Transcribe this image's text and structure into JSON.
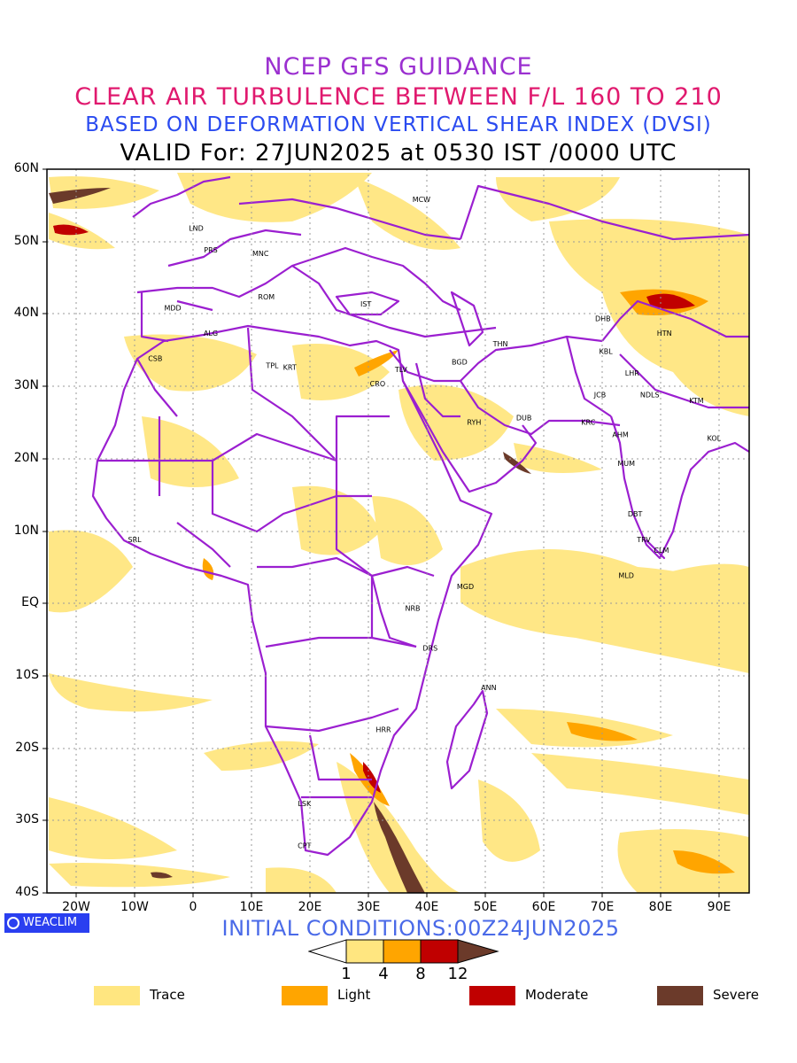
{
  "titles": {
    "line1": "NCEP GFS GUIDANCE",
    "line2": "CLEAR AIR TURBULENCE BETWEEN F/L 160 TO 210",
    "line3": "BASED ON DEFORMATION VERTICAL SHEAR INDEX (DVSI)",
    "line4": "VALID For: 27JUN2025 at 0530 IST /0000 UTC"
  },
  "axes": {
    "lat_labels": [
      "60N",
      "50N",
      "40N",
      "30N",
      "20N",
      "10N",
      "EQ",
      "10S",
      "20S",
      "30S",
      "40S"
    ],
    "lon_labels": [
      "20W",
      "10W",
      "0",
      "10E",
      "20E",
      "30E",
      "40E",
      "50E",
      "60E",
      "70E",
      "80E",
      "90E"
    ]
  },
  "logo": {
    "text": "WEACLIM",
    "icon": "globe-ring-icon"
  },
  "initial_conditions": "INITIAL CONDITIONS:00Z24JUN2025",
  "colorbar": {
    "ticks": [
      "1",
      "4",
      "8",
      "12"
    ],
    "colors": [
      "#ffffff",
      "#ffe680",
      "#ffa500",
      "#c00000",
      "#6b3a2a"
    ]
  },
  "legend": [
    {
      "label": "Trace",
      "color": "#ffe680"
    },
    {
      "label": "Light",
      "color": "#ffa500"
    },
    {
      "label": "Moderate",
      "color": "#c00000"
    },
    {
      "label": "Severe",
      "color": "#6b3a2a"
    }
  ],
  "cities": [
    {
      "code": "MCW",
      "lon": 39,
      "lat": 55.5
    },
    {
      "code": "LND",
      "lon": 0.5,
      "lat": 51.5
    },
    {
      "code": "PRS",
      "lon": 3,
      "lat": 48.5
    },
    {
      "code": "MNC",
      "lon": 11.5,
      "lat": 48
    },
    {
      "code": "ROM",
      "lon": 12.5,
      "lat": 42
    },
    {
      "code": "MDD",
      "lon": -3.5,
      "lat": 40.5
    },
    {
      "code": "IST",
      "lon": 29.5,
      "lat": 41
    },
    {
      "code": "ALG",
      "lon": 3,
      "lat": 37
    },
    {
      "code": "CSB",
      "lon": -6.5,
      "lat": 33.5
    },
    {
      "code": "TPL",
      "lon": 13.5,
      "lat": 32.5
    },
    {
      "code": "KRT",
      "lon": 16.5,
      "lat": 32.3
    },
    {
      "code": "TLV",
      "lon": 35.5,
      "lat": 32
    },
    {
      "code": "CRO",
      "lon": 31.5,
      "lat": 30
    },
    {
      "code": "BGD",
      "lon": 45.5,
      "lat": 33
    },
    {
      "code": "THN",
      "lon": 52.5,
      "lat": 35.5
    },
    {
      "code": "DHB",
      "lon": 70,
      "lat": 39
    },
    {
      "code": "HTN",
      "lon": 80.5,
      "lat": 37
    },
    {
      "code": "KBL",
      "lon": 70.5,
      "lat": 34.5
    },
    {
      "code": "LHR",
      "lon": 75,
      "lat": 31.5
    },
    {
      "code": "RYH",
      "lon": 48,
      "lat": 24.7
    },
    {
      "code": "DUB",
      "lon": 56.5,
      "lat": 25.3
    },
    {
      "code": "JCB",
      "lon": 69.5,
      "lat": 28.5
    },
    {
      "code": "NDLS",
      "lon": 78,
      "lat": 28.5
    },
    {
      "code": "KTM",
      "lon": 86,
      "lat": 27.7
    },
    {
      "code": "KRC",
      "lon": 67.5,
      "lat": 24.7
    },
    {
      "code": "AHM",
      "lon": 73,
      "lat": 23
    },
    {
      "code": "KOL",
      "lon": 89,
      "lat": 22.5
    },
    {
      "code": "MUM",
      "lon": 74,
      "lat": 19
    },
    {
      "code": "SRL",
      "lon": -10,
      "lat": 8.5
    },
    {
      "code": "DBT",
      "lon": 75.5,
      "lat": 12
    },
    {
      "code": "TRV",
      "lon": 77,
      "lat": 8.5
    },
    {
      "code": "CLM",
      "lon": 80,
      "lat": 7
    },
    {
      "code": "MLD",
      "lon": 74,
      "lat": 3.5
    },
    {
      "code": "MGD",
      "lon": 46.5,
      "lat": 2
    },
    {
      "code": "NRB",
      "lon": 37.5,
      "lat": -1
    },
    {
      "code": "DRS",
      "lon": 40.5,
      "lat": -6.5
    },
    {
      "code": "ANN",
      "lon": 50.5,
      "lat": -12
    },
    {
      "code": "HRR",
      "lon": 32.5,
      "lat": -17.8
    },
    {
      "code": "LSK",
      "lon": 19,
      "lat": -28
    },
    {
      "code": "CPT",
      "lon": 19,
      "lat": -33.8
    }
  ]
}
